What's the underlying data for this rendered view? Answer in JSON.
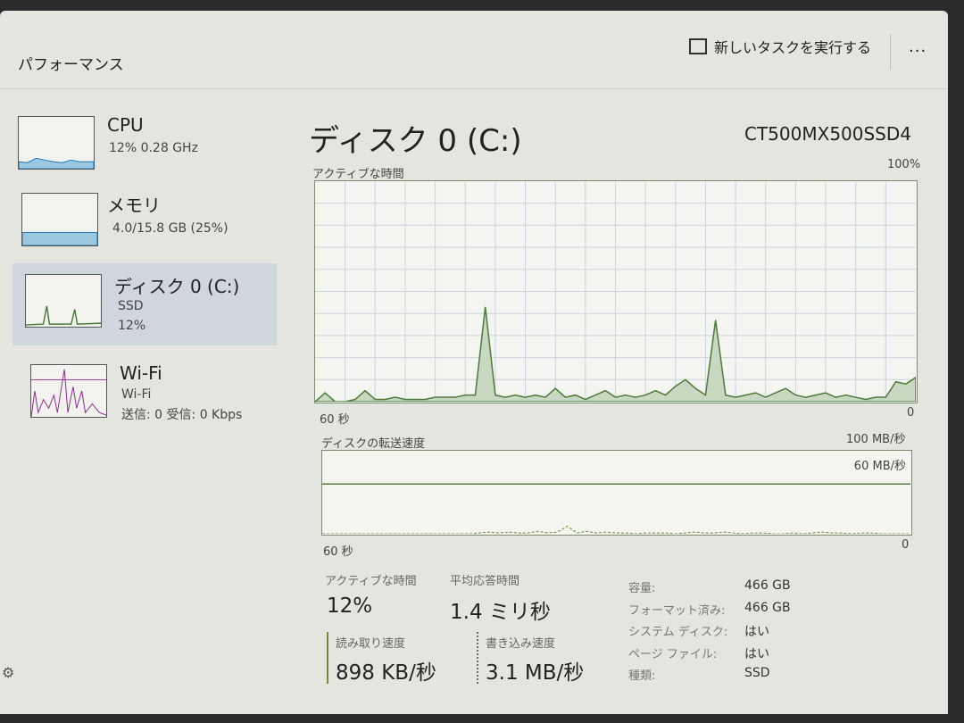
{
  "header": {
    "title": "パフォーマンス",
    "run_task_label": "新しいタスクを実行する",
    "more_label": "..."
  },
  "sidebar": {
    "items": [
      {
        "name": "CPU",
        "sub": "12%  0.28 GHz",
        "color": "#1b78b8"
      },
      {
        "name": "メモリ",
        "sub": "4.0/15.8 GB (25%)",
        "color": "#1b78b8"
      },
      {
        "name": "ディスク 0 (C:)",
        "sub": "SSD",
        "sub2": "12%",
        "color": "#4d7a3a",
        "selected": true
      },
      {
        "name": "Wi-Fi",
        "sub": "Wi-Fi",
        "sub2": "送信: 0 受信: 0 Kbps",
        "color": "#8e2a8e"
      }
    ]
  },
  "main": {
    "title": "ディスク 0 (C:)",
    "model": "CT500MX500SSD4",
    "active_graph": {
      "label": "アクティブな時間",
      "max_label": "100%",
      "left_label": "60 秒",
      "right_label": "0",
      "color": "#4d7a3a",
      "values": [
        0,
        4,
        0,
        0,
        1,
        5,
        1,
        1,
        2,
        1,
        1,
        1,
        2,
        2,
        2,
        3,
        3,
        43,
        3,
        2,
        3,
        2,
        3,
        2,
        6,
        2,
        3,
        1,
        3,
        5,
        2,
        3,
        2,
        3,
        5,
        3,
        7,
        10,
        6,
        3,
        37,
        3,
        2,
        3,
        4,
        2,
        4,
        6,
        3,
        2,
        3,
        4,
        2,
        3,
        2,
        1,
        2,
        2,
        9,
        8,
        11
      ]
    },
    "transfer_graph": {
      "label": "ディスクの転送速度",
      "max_label": "100 MB/秒",
      "line_label": "60 MB/秒",
      "left_label": "60 秒",
      "right_label": "0",
      "line_value": 60,
      "max_value": 100,
      "values": [
        0,
        0,
        0,
        0,
        0,
        0,
        0,
        0,
        0,
        0,
        0,
        0,
        0,
        0,
        0,
        0,
        1,
        2,
        1,
        2,
        1,
        1,
        3,
        1,
        2,
        9,
        1,
        3,
        1,
        2,
        1,
        1,
        0,
        1,
        1,
        1,
        0,
        1,
        2,
        1,
        1,
        2,
        1,
        0,
        1,
        1,
        0,
        0,
        1,
        0,
        1,
        2,
        1,
        1,
        0,
        1,
        1,
        0,
        0,
        0,
        0
      ]
    },
    "stats": {
      "active_time": {
        "label": "アクティブな時間",
        "value": "12%"
      },
      "avg_response": {
        "label": "平均応答時間",
        "value": "1.4 ミリ秒"
      },
      "read": {
        "label": "読み取り速度",
        "value": "898 KB/秒"
      },
      "write": {
        "label": "書き込み速度",
        "value": "3.1 MB/秒"
      }
    },
    "props": [
      {
        "k": "容量:",
        "v": "466 GB"
      },
      {
        "k": "フォーマット済み:",
        "v": "466 GB"
      },
      {
        "k": "システム ディスク:",
        "v": "はい"
      },
      {
        "k": "ページ ファイル:",
        "v": "はい"
      },
      {
        "k": "種類:",
        "v": "SSD"
      }
    ]
  }
}
